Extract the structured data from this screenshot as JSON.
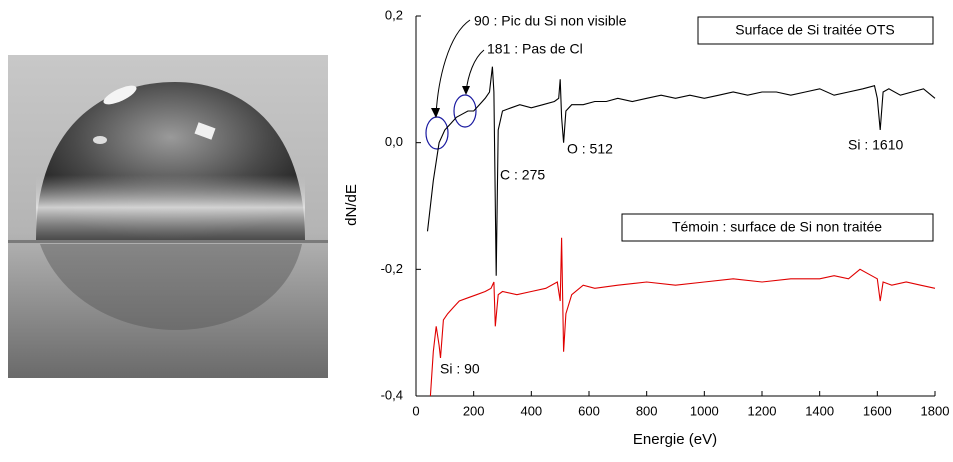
{
  "chart_data": {
    "type": "line",
    "xlabel": "Energie (eV)",
    "ylabel": "dN/dE",
    "xlim": [
      0,
      1800
    ],
    "xticks": [
      0,
      200,
      400,
      600,
      800,
      1000,
      1200,
      1400,
      1600,
      1800
    ],
    "ylim": [
      -0.4,
      0.2
    ],
    "yticks": [
      {
        "value": -0.4,
        "label": "-0,4"
      },
      {
        "value": -0.2,
        "label": "-0,2"
      },
      {
        "value": 0.0,
        "label": "0,0"
      },
      {
        "value": 0.2,
        "label": "0,2"
      }
    ],
    "grid": false,
    "annotations": [
      "90 : Pic du Si non visible",
      "181 : Pas de Cl",
      "C : 275",
      "O : 512",
      "Si : 1610",
      "Si : 90"
    ],
    "series": [
      {
        "name": "Surface de Si traitée OTS",
        "color": "#000000",
        "x": [
          40,
          60,
          80,
          100,
          120,
          140,
          160,
          180,
          200,
          220,
          240,
          255,
          265,
          270,
          278,
          285,
          300,
          330,
          360,
          400,
          440,
          480,
          495,
          500,
          505,
          512,
          520,
          540,
          580,
          620,
          660,
          700,
          750,
          800,
          850,
          900,
          950,
          1000,
          1050,
          1100,
          1150,
          1200,
          1250,
          1300,
          1350,
          1400,
          1450,
          1500,
          1550,
          1590,
          1600,
          1610,
          1620,
          1640,
          1680,
          1720,
          1760,
          1800
        ],
        "values": [
          -0.14,
          -0.06,
          0.0,
          0.02,
          0.03,
          0.04,
          0.045,
          0.05,
          0.05,
          0.06,
          0.07,
          0.08,
          0.12,
          0.08,
          -0.21,
          0.02,
          0.05,
          0.055,
          0.06,
          0.055,
          0.06,
          0.065,
          0.07,
          0.1,
          0.04,
          0.0,
          0.05,
          0.06,
          0.06,
          0.065,
          0.065,
          0.07,
          0.065,
          0.07,
          0.075,
          0.07,
          0.075,
          0.07,
          0.075,
          0.08,
          0.075,
          0.08,
          0.08,
          0.075,
          0.08,
          0.085,
          0.075,
          0.08,
          0.085,
          0.09,
          0.07,
          0.02,
          0.08,
          0.085,
          0.075,
          0.08,
          0.085,
          0.07
        ]
      },
      {
        "name": "Témoin : surface de Si non traitée",
        "color": "#e00000",
        "x": [
          50,
          60,
          70,
          80,
          85,
          95,
          110,
          130,
          150,
          180,
          210,
          240,
          260,
          270,
          275,
          285,
          300,
          350,
          400,
          450,
          490,
          500,
          505,
          512,
          520,
          540,
          580,
          620,
          700,
          800,
          900,
          1000,
          1100,
          1200,
          1300,
          1400,
          1450,
          1500,
          1540,
          1580,
          1600,
          1610,
          1620,
          1650,
          1700,
          1750,
          1800
        ],
        "values": [
          -0.4,
          -0.33,
          -0.29,
          -0.32,
          -0.34,
          -0.28,
          -0.27,
          -0.26,
          -0.25,
          -0.245,
          -0.24,
          -0.235,
          -0.23,
          -0.22,
          -0.29,
          -0.24,
          -0.235,
          -0.24,
          -0.235,
          -0.23,
          -0.22,
          -0.25,
          -0.15,
          -0.33,
          -0.27,
          -0.24,
          -0.225,
          -0.23,
          -0.225,
          -0.22,
          -0.225,
          -0.22,
          -0.215,
          -0.22,
          -0.215,
          -0.215,
          -0.21,
          -0.215,
          -0.2,
          -0.21,
          -0.215,
          -0.25,
          -0.22,
          -0.225,
          -0.22,
          -0.225,
          -0.23
        ]
      }
    ]
  }
}
